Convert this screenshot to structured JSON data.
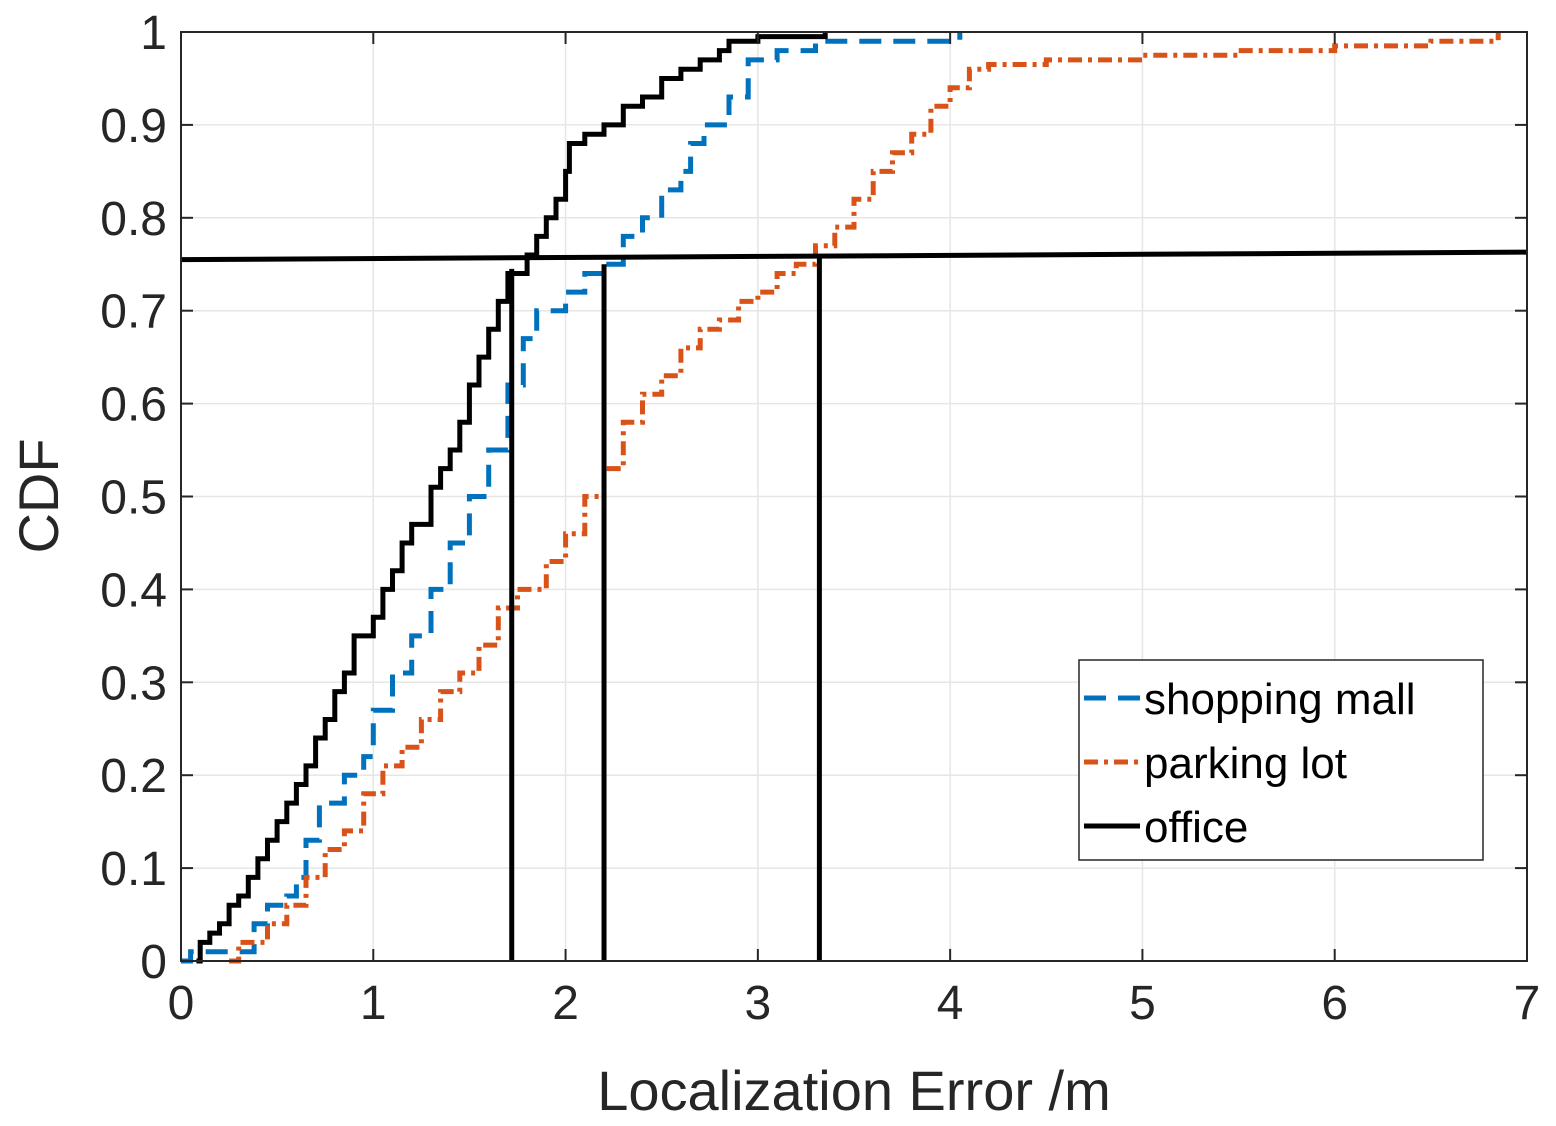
{
  "chart_data": {
    "type": "line",
    "xlabel": "Localization Error /m",
    "ylabel": "CDF",
    "xlim": [
      0,
      7
    ],
    "ylim": [
      0,
      1
    ],
    "x_ticks": [
      "0",
      "1",
      "2",
      "3",
      "4",
      "5",
      "6",
      "7"
    ],
    "y_ticks": [
      "0",
      "0.1",
      "0.2",
      "0.3",
      "0.4",
      "0.5",
      "0.6",
      "0.7",
      "0.8",
      "0.9",
      "1"
    ],
    "grid": true,
    "legend_position": "bottom-right",
    "series": [
      {
        "name": "shopping mall",
        "color": "#0072BD",
        "style": "dashed",
        "points": [
          [
            0,
            0
          ],
          [
            0.05,
            0.01
          ],
          [
            0.3,
            0.01
          ],
          [
            0.38,
            0.04
          ],
          [
            0.45,
            0.06
          ],
          [
            0.55,
            0.07
          ],
          [
            0.6,
            0.09
          ],
          [
            0.65,
            0.13
          ],
          [
            0.72,
            0.17
          ],
          [
            0.85,
            0.2
          ],
          [
            0.95,
            0.22
          ],
          [
            1.0,
            0.27
          ],
          [
            1.1,
            0.31
          ],
          [
            1.2,
            0.35
          ],
          [
            1.3,
            0.4
          ],
          [
            1.4,
            0.45
          ],
          [
            1.5,
            0.5
          ],
          [
            1.6,
            0.55
          ],
          [
            1.7,
            0.62
          ],
          [
            1.78,
            0.67
          ],
          [
            1.85,
            0.7
          ],
          [
            2.0,
            0.72
          ],
          [
            2.1,
            0.74
          ],
          [
            2.2,
            0.75
          ],
          [
            2.3,
            0.78
          ],
          [
            2.4,
            0.8
          ],
          [
            2.5,
            0.83
          ],
          [
            2.6,
            0.85
          ],
          [
            2.65,
            0.88
          ],
          [
            2.72,
            0.9
          ],
          [
            2.85,
            0.93
          ],
          [
            2.95,
            0.97
          ],
          [
            3.1,
            0.98
          ],
          [
            3.3,
            0.99
          ],
          [
            4.0,
            0.99
          ],
          [
            4.05,
            1.0
          ]
        ]
      },
      {
        "name": "parking lot",
        "color": "#D95319",
        "style": "dash-dot",
        "points": [
          [
            0.25,
            0
          ],
          [
            0.3,
            0.02
          ],
          [
            0.45,
            0.04
          ],
          [
            0.55,
            0.06
          ],
          [
            0.65,
            0.09
          ],
          [
            0.75,
            0.12
          ],
          [
            0.85,
            0.14
          ],
          [
            0.95,
            0.18
          ],
          [
            1.05,
            0.21
          ],
          [
            1.15,
            0.23
          ],
          [
            1.25,
            0.26
          ],
          [
            1.35,
            0.29
          ],
          [
            1.45,
            0.31
          ],
          [
            1.55,
            0.34
          ],
          [
            1.65,
            0.38
          ],
          [
            1.75,
            0.4
          ],
          [
            1.9,
            0.43
          ],
          [
            2.0,
            0.46
          ],
          [
            2.1,
            0.5
          ],
          [
            2.2,
            0.53
          ],
          [
            2.3,
            0.58
          ],
          [
            2.4,
            0.61
          ],
          [
            2.5,
            0.63
          ],
          [
            2.6,
            0.66
          ],
          [
            2.7,
            0.68
          ],
          [
            2.8,
            0.69
          ],
          [
            2.9,
            0.71
          ],
          [
            3.0,
            0.72
          ],
          [
            3.1,
            0.74
          ],
          [
            3.2,
            0.75
          ],
          [
            3.3,
            0.77
          ],
          [
            3.4,
            0.79
          ],
          [
            3.5,
            0.82
          ],
          [
            3.6,
            0.85
          ],
          [
            3.7,
            0.87
          ],
          [
            3.8,
            0.89
          ],
          [
            3.9,
            0.92
          ],
          [
            4.0,
            0.94
          ],
          [
            4.1,
            0.96
          ],
          [
            4.2,
            0.965
          ],
          [
            4.5,
            0.97
          ],
          [
            5.0,
            0.975
          ],
          [
            5.5,
            0.98
          ],
          [
            6.0,
            0.985
          ],
          [
            6.5,
            0.99
          ],
          [
            6.85,
            1.0
          ]
        ]
      },
      {
        "name": "office",
        "color": "#000000",
        "style": "solid",
        "points": [
          [
            0.08,
            0
          ],
          [
            0.1,
            0.02
          ],
          [
            0.15,
            0.03
          ],
          [
            0.2,
            0.04
          ],
          [
            0.25,
            0.06
          ],
          [
            0.3,
            0.07
          ],
          [
            0.35,
            0.09
          ],
          [
            0.4,
            0.11
          ],
          [
            0.45,
            0.13
          ],
          [
            0.5,
            0.15
          ],
          [
            0.55,
            0.17
          ],
          [
            0.6,
            0.19
          ],
          [
            0.65,
            0.21
          ],
          [
            0.7,
            0.24
          ],
          [
            0.75,
            0.26
          ],
          [
            0.8,
            0.29
          ],
          [
            0.85,
            0.31
          ],
          [
            0.9,
            0.35
          ],
          [
            1.0,
            0.37
          ],
          [
            1.05,
            0.4
          ],
          [
            1.1,
            0.42
          ],
          [
            1.15,
            0.45
          ],
          [
            1.2,
            0.47
          ],
          [
            1.3,
            0.51
          ],
          [
            1.35,
            0.53
          ],
          [
            1.4,
            0.55
          ],
          [
            1.45,
            0.58
          ],
          [
            1.5,
            0.62
          ],
          [
            1.55,
            0.65
          ],
          [
            1.6,
            0.68
          ],
          [
            1.65,
            0.71
          ],
          [
            1.7,
            0.74
          ],
          [
            1.8,
            0.76
          ],
          [
            1.85,
            0.78
          ],
          [
            1.9,
            0.8
          ],
          [
            1.95,
            0.82
          ],
          [
            2.0,
            0.85
          ],
          [
            2.02,
            0.88
          ],
          [
            2.1,
            0.89
          ],
          [
            2.2,
            0.9
          ],
          [
            2.3,
            0.92
          ],
          [
            2.4,
            0.93
          ],
          [
            2.5,
            0.95
          ],
          [
            2.6,
            0.96
          ],
          [
            2.7,
            0.97
          ],
          [
            2.8,
            0.98
          ],
          [
            2.85,
            0.99
          ],
          [
            3.0,
            0.995
          ],
          [
            3.35,
            1.0
          ]
        ]
      }
    ],
    "reference_lines": {
      "color": "#000000",
      "horizontal": {
        "x": [
          0,
          7
        ],
        "y": [
          0.755,
          0.763
        ]
      },
      "vertical": [
        {
          "x": 1.72,
          "y": [
            0,
            0.745
          ]
        },
        {
          "x": 2.2,
          "y": [
            0,
            0.75
          ]
        },
        {
          "x": 3.32,
          "y": [
            0,
            0.76
          ]
        }
      ]
    }
  }
}
